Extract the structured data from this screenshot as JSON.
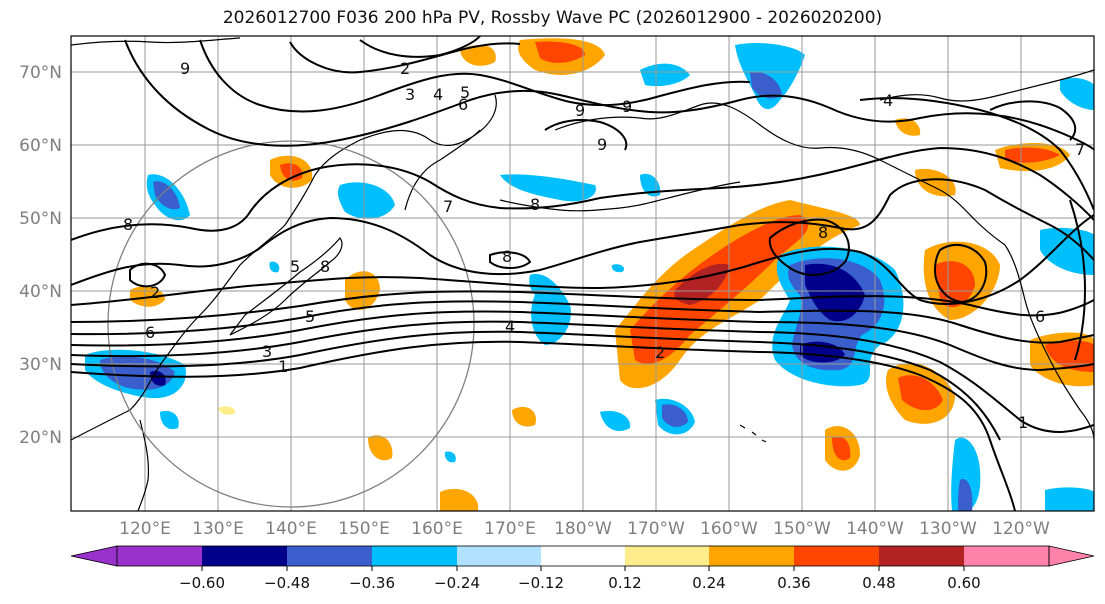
{
  "title": "2026012700 F036 200 hPa PV, Rossby Wave PC (2026012900 - 2026020200)",
  "lat_labels": [
    "70°N",
    "60°N",
    "50°N",
    "40°N",
    "30°N",
    "20°N"
  ],
  "lon_labels": [
    "120°E",
    "130°E",
    "140°E",
    "150°E",
    "160°E",
    "170°E",
    "180°W",
    "170°W",
    "160°W",
    "150°W",
    "140°W",
    "130°W",
    "120°W"
  ],
  "colorbar": {
    "ticks": [
      "−0.60",
      "−0.48",
      "−0.36",
      "−0.24",
      "−0.12",
      "0.12",
      "0.24",
      "0.36",
      "0.48",
      "0.60"
    ],
    "colors": [
      "#9932cc",
      "#00008b",
      "#3a5fcd",
      "#00bfff",
      "#b0e2ff",
      "#ffffff",
      "#ffec8b",
      "#ffa500",
      "#ff4500",
      "#b22222",
      "#ff82ab"
    ]
  },
  "contour_labels": [
    "9",
    "2",
    "3",
    "4",
    "5",
    "6",
    "9",
    "9",
    "9",
    "8",
    "7",
    "8",
    "5",
    "8",
    "6",
    "5",
    "3",
    "2",
    "1",
    "4",
    "2",
    "8",
    "4",
    "1",
    "7",
    "8",
    "6"
  ]
}
